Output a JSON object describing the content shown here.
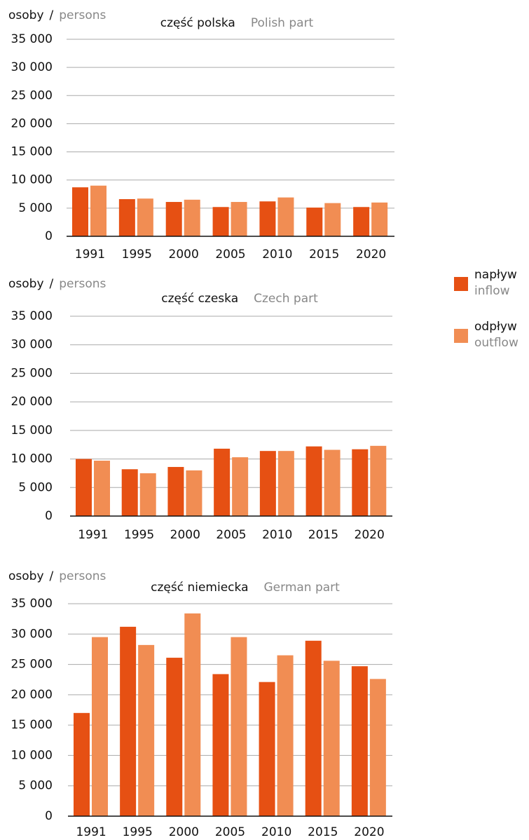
{
  "chart_data": [
    {
      "type": "bar",
      "title": "część polska",
      "title_en": "Polish part",
      "ylabel": "osoby",
      "ylabel_sep": "/",
      "ylabel_en": "persons",
      "categories": [
        "1991",
        "1995",
        "2000",
        "2005",
        "2010",
        "2015",
        "2020"
      ],
      "series": [
        {
          "values": [
            8700,
            6600,
            6100,
            5200,
            6200,
            5100,
            5200
          ]
        },
        {
          "values": [
            9000,
            6700,
            6500,
            6100,
            6900,
            5900,
            6000
          ]
        }
      ],
      "ylim": [
        0,
        35000
      ],
      "yticks": [
        0,
        {
          "value": 5000,
          "label": "5 000"
        },
        {
          "value": 10000,
          "label": "10 000"
        },
        {
          "value": 15000,
          "label": "15 000"
        },
        {
          "value": 20000,
          "label": "20 000"
        },
        {
          "value": 25000,
          "label": "25 000"
        },
        {
          "value": 30000,
          "label": "30 000"
        },
        {
          "value": 35000,
          "label": "35 000"
        }
      ],
      "grid": true
    },
    {
      "type": "bar",
      "title": "część czeska",
      "title_en": "Czech part",
      "ylabel": "osoby",
      "ylabel_sep": "/",
      "ylabel_en": "persons",
      "categories": [
        "1991",
        "1995",
        "2000",
        "2005",
        "2010",
        "2015",
        "2020"
      ],
      "series": [
        {
          "values": [
            10000,
            8200,
            8600,
            11800,
            11400,
            12200,
            11700
          ]
        },
        {
          "values": [
            9700,
            7500,
            8000,
            10300,
            11400,
            11600,
            12300
          ]
        }
      ],
      "ylim": [
        0,
        35000
      ],
      "yticks": [
        0,
        {
          "value": 5000,
          "label": "5 000"
        },
        {
          "value": 10000,
          "label": "10 000"
        },
        {
          "value": 15000,
          "label": "15 000"
        },
        {
          "value": 20000,
          "label": "20 000"
        },
        {
          "value": 25000,
          "label": "25 000"
        },
        {
          "value": 30000,
          "label": "30 000"
        },
        {
          "value": 35000,
          "label": "35 000"
        }
      ],
      "grid": true
    },
    {
      "type": "bar",
      "title": "część niemiecka",
      "title_en": "German part",
      "ylabel": "osoby",
      "ylabel_sep": "/",
      "ylabel_en": "persons",
      "categories": [
        "1991",
        "1995",
        "2000",
        "2005",
        "2010",
        "2015",
        "2020"
      ],
      "series": [
        {
          "values": [
            17000,
            31200,
            26100,
            23400,
            22100,
            28900,
            24700
          ]
        },
        {
          "values": [
            29500,
            28200,
            33400,
            29500,
            26500,
            25600,
            22600
          ]
        }
      ],
      "ylim": [
        0,
        35000
      ],
      "yticks": [
        0,
        {
          "value": 5000,
          "label": "5 000"
        },
        {
          "value": 10000,
          "label": "10 000"
        },
        {
          "value": 15000,
          "label": "15 000"
        },
        {
          "value": 20000,
          "label": "20 000"
        },
        {
          "value": 25000,
          "label": "25 000"
        },
        {
          "value": 30000,
          "label": "30 000"
        },
        {
          "value": 35000,
          "label": "35 000"
        }
      ],
      "grid": true
    }
  ],
  "legend": [
    {
      "name": "napływ",
      "name_en": "inflow",
      "color": "#e65013"
    },
    {
      "name": "odpływ",
      "name_en": "outflow",
      "color": "#f18d53"
    }
  ]
}
